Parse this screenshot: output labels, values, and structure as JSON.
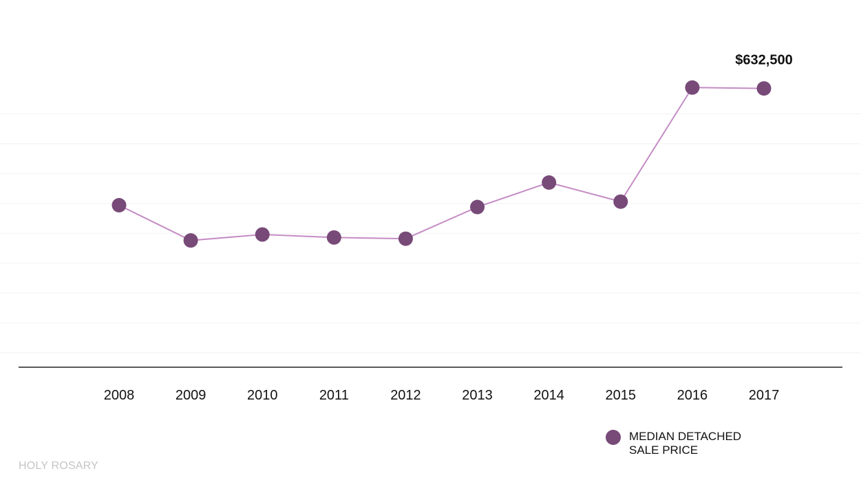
{
  "chart_data": {
    "type": "line",
    "title": "",
    "xlabel": "",
    "ylabel": "",
    "x": [
      "2008",
      "2009",
      "2010",
      "2011",
      "2012",
      "2013",
      "2014",
      "2015",
      "2016",
      "2017"
    ],
    "series": [
      {
        "name": "MEDIAN DETACHED SALE PRICE",
        "values": [
          437000,
          378000,
          388000,
          383000,
          381000,
          434000,
          475000,
          443000,
          634000,
          632500
        ]
      }
    ],
    "annotations": [
      {
        "x": "2017",
        "label": "$632,500"
      }
    ],
    "ylim": [
      190000,
      670000
    ],
    "grid": true,
    "legend_position": "bottom-right"
  },
  "legend": {
    "line1": "MEDIAN DETACHED",
    "line2": "SALE PRICE"
  },
  "watermark": "HOLY ROSARY",
  "colors": {
    "marker": "#784a78",
    "line": "#c48cc4",
    "grid": "#f2f2f2",
    "axis": "#222222"
  }
}
